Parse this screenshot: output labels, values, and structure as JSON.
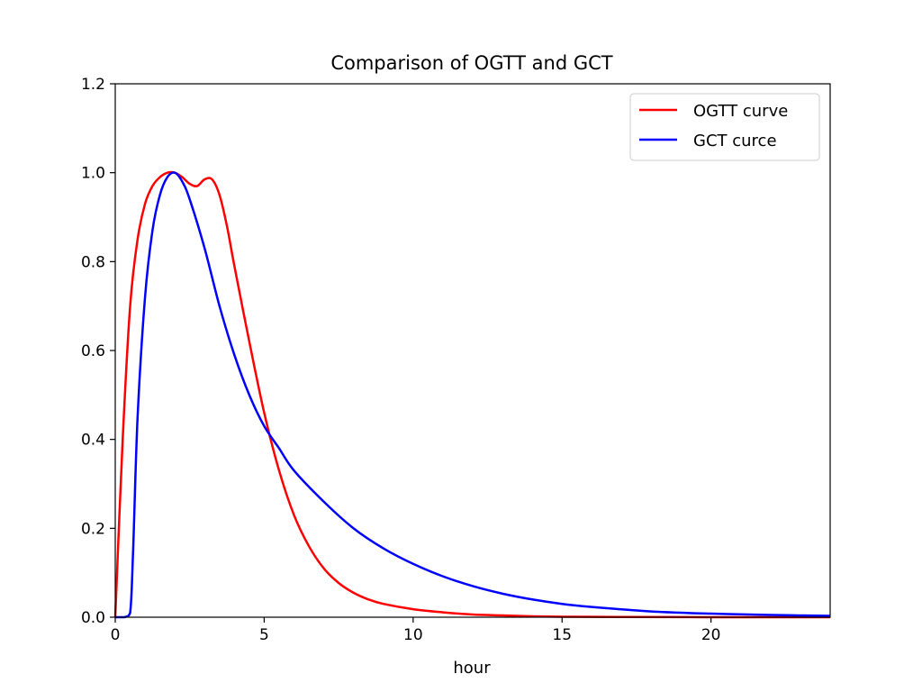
{
  "chart_data": {
    "type": "line",
    "title": "Comparison of OGTT and GCT",
    "xlabel": "hour",
    "ylabel": "",
    "xlim": [
      0,
      24
    ],
    "ylim": [
      0.0,
      1.2
    ],
    "grid": false,
    "legend_position": "top-right",
    "x_ticks": [
      0,
      5,
      10,
      15,
      20
    ],
    "x_tick_labels": [
      "0",
      "5",
      "10",
      "15",
      "20"
    ],
    "y_ticks": [
      0.0,
      0.2,
      0.4,
      0.6,
      0.8,
      1.0,
      1.2
    ],
    "y_tick_labels": [
      "0.0",
      "0.2",
      "0.4",
      "0.6",
      "0.8",
      "1.0",
      "1.2"
    ],
    "series": [
      {
        "name": "OGTT curve",
        "color": "#ff0000",
        "x": [
          0,
          0.25,
          0.5,
          0.75,
          1.0,
          1.25,
          1.5,
          1.75,
          2.0,
          2.25,
          2.5,
          2.75,
          3.0,
          3.25,
          3.5,
          3.75,
          4.0,
          4.5,
          5.0,
          5.5,
          6.0,
          6.5,
          7.0,
          7.5,
          8.0,
          8.5,
          9.0,
          10.0,
          11.0,
          12.0,
          13.0,
          14.0,
          15.0,
          17.0,
          20.0,
          24.0
        ],
        "values": [
          0.0,
          0.4,
          0.7,
          0.85,
          0.93,
          0.97,
          0.99,
          1.0,
          1.0,
          0.99,
          0.975,
          0.97,
          0.985,
          0.985,
          0.95,
          0.88,
          0.79,
          0.62,
          0.46,
          0.33,
          0.23,
          0.16,
          0.11,
          0.077,
          0.055,
          0.04,
          0.03,
          0.018,
          0.011,
          0.006,
          0.004,
          0.002,
          0.001,
          0.0005,
          0.0001,
          0.0
        ]
      },
      {
        "name": "GCT curce",
        "color": "#0000ff",
        "x": [
          0,
          0.3,
          0.5,
          0.6,
          0.75,
          1.0,
          1.25,
          1.5,
          1.75,
          2.0,
          2.25,
          2.5,
          3.0,
          3.5,
          4.0,
          4.5,
          5.0,
          5.5,
          6.0,
          7.0,
          8.0,
          9.0,
          10.0,
          11.0,
          12.0,
          13.0,
          14.0,
          15.0,
          16.0,
          18.0,
          20.0,
          22.0,
          24.0
        ],
        "values": [
          0.0,
          0.0,
          0.01,
          0.15,
          0.45,
          0.72,
          0.87,
          0.95,
          0.99,
          1.0,
          0.98,
          0.94,
          0.83,
          0.7,
          0.59,
          0.5,
          0.43,
          0.38,
          0.33,
          0.26,
          0.2,
          0.155,
          0.12,
          0.092,
          0.07,
          0.053,
          0.04,
          0.03,
          0.023,
          0.013,
          0.008,
          0.005,
          0.003
        ]
      }
    ]
  }
}
